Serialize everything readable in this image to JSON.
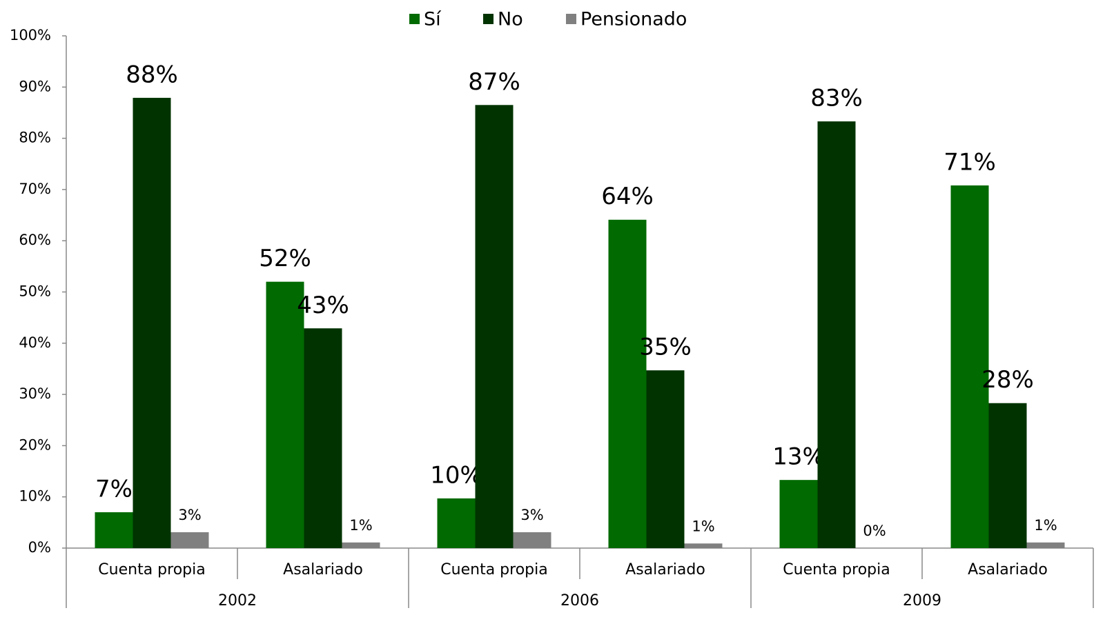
{
  "chart_data": {
    "type": "bar",
    "categories": [
      "Cuenta propia",
      "Asalariado",
      "Cuenta propia",
      "Asalariado",
      "Cuenta propia",
      "Asalariado"
    ],
    "category_groups": [
      "2002",
      "2006",
      "2009"
    ],
    "series": [
      {
        "name": "Sí",
        "color": "#016a01",
        "values": [
          7.0,
          52.0,
          9.7,
          64.1,
          13.3,
          70.8
        ],
        "value_labels": [
          "7%",
          "52%",
          "10%",
          "64%",
          "13%",
          "71%"
        ]
      },
      {
        "name": "No",
        "color": "#003300",
        "values": [
          87.9,
          42.9,
          86.5,
          34.7,
          83.3,
          28.3
        ],
        "value_labels": [
          "88%",
          "43%",
          "87%",
          "35%",
          "83%",
          "28%"
        ]
      },
      {
        "name": "Pensionado",
        "color": "#808080",
        "values": [
          3.1,
          1.1,
          3.1,
          0.9,
          0,
          1.1
        ],
        "value_labels": [
          "3%",
          "1%",
          "3%",
          "1%",
          "0%",
          "1%"
        ]
      }
    ],
    "ylim": [
      0,
      100
    ],
    "yticks": [
      {
        "value": 0,
        "label": "0%"
      },
      {
        "value": 10,
        "label": "10%"
      },
      {
        "value": 20,
        "label": "20%"
      },
      {
        "value": 30,
        "label": "30%"
      },
      {
        "value": 40,
        "label": "40%"
      },
      {
        "value": 50,
        "label": "50%"
      },
      {
        "value": 60,
        "label": "60%"
      },
      {
        "value": 70,
        "label": "70%"
      },
      {
        "value": 80,
        "label": "80%"
      },
      {
        "value": 90,
        "label": "90%"
      },
      {
        "value": 100,
        "label": "100%"
      }
    ],
    "legend": "top"
  }
}
